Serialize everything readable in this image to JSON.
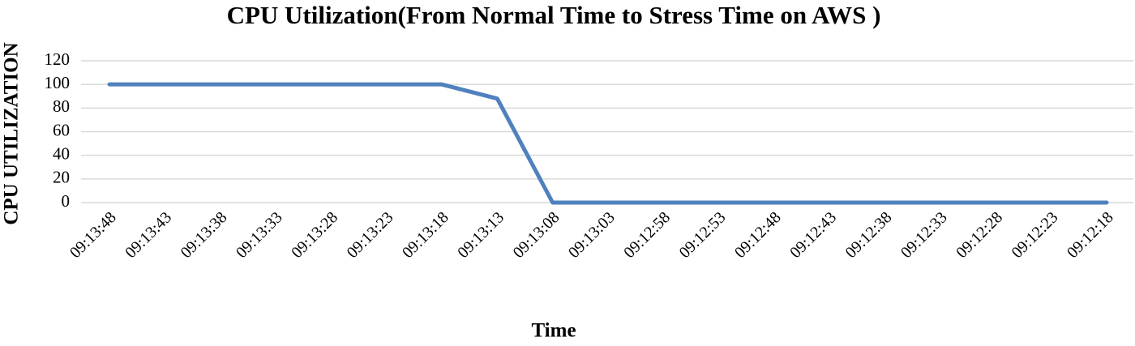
{
  "chart_data": {
    "type": "line",
    "title": "CPU Utilization(From Normal Time to Stress Time on AWS )",
    "x_label": "Time",
    "y_label": "CPU UTILIZATION",
    "categories": [
      "09:13:48",
      "09:13:43",
      "09:13:38",
      "09:13:33",
      "09:13:28",
      "09:13:23",
      "09:13:18",
      "09:13:13",
      "09:13:08",
      "09:13:03",
      "09:12:58",
      "09:12:53",
      "09:12:48",
      "09:12:43",
      "09:12:38",
      "09:12:33",
      "09:12:28",
      "09:12:23",
      "09:12:18"
    ],
    "series": [
      {
        "name": "CPU Utilization",
        "color": "#4f81bd",
        "values": [
          100,
          100,
          100,
          100,
          100,
          100,
          100,
          88,
          0,
          0,
          0,
          0,
          0,
          0,
          0,
          0,
          0,
          0,
          0
        ]
      }
    ],
    "ylim": [
      0,
      120
    ],
    "yticks": [
      0,
      20,
      40,
      60,
      80,
      100,
      120
    ],
    "grid": true
  }
}
